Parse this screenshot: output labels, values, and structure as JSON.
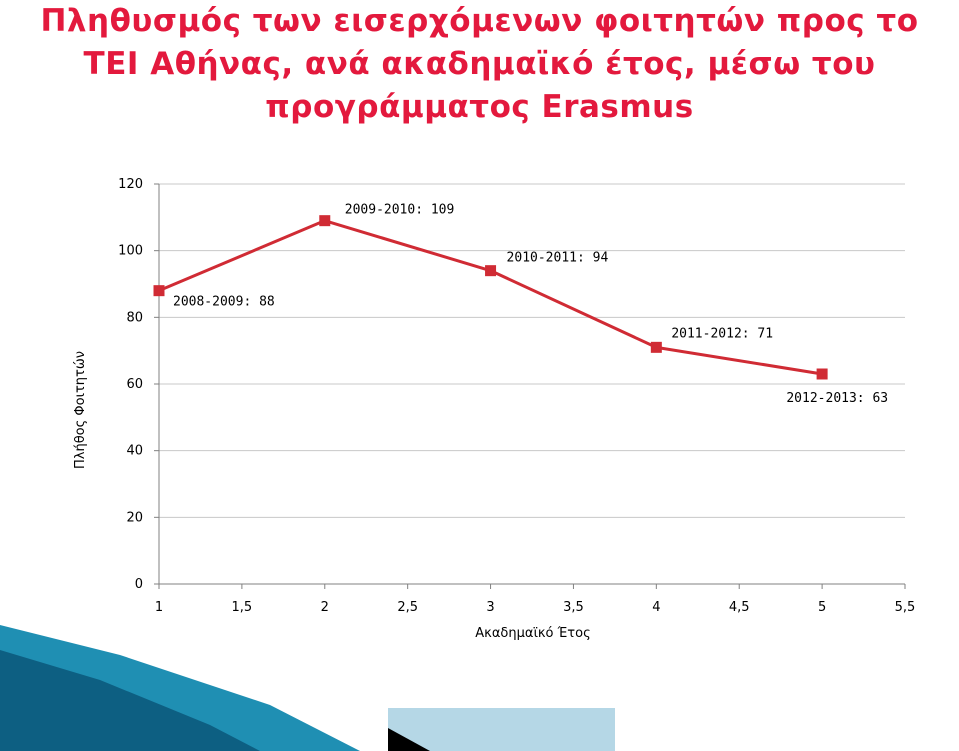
{
  "chart_data": {
    "type": "line",
    "title_lines": [
      "Πληθυσμός των εισερχόμενων φοιτητών προς το",
      "ΤΕΙ Αθήνας, ανά ακαδημαϊκό έτος, μέσω του",
      "προγράμματος Erasmus"
    ],
    "xlabel": "Ακαδημαϊκό Έτος",
    "ylabel": "Πλήθος Φοιτητών",
    "xlim": [
      1,
      5.5
    ],
    "ylim": [
      0,
      120
    ],
    "x_ticks": [
      "1",
      "1,5",
      "2",
      "2,5",
      "3",
      "3,5",
      "4",
      "4,5",
      "5",
      "5,5"
    ],
    "y_ticks": [
      "0",
      "20",
      "40",
      "60",
      "80",
      "100",
      "120"
    ],
    "grid": "horizontal",
    "series": [
      {
        "color": "#d02b34",
        "x": [
          1,
          2,
          3,
          4,
          5
        ],
        "y": [
          88,
          109,
          94,
          71,
          63
        ],
        "labels": [
          "2008-2009: 88",
          "2009-2010: 109",
          "2010-2011: 94",
          "2011-2012: 71",
          "2012-2013: 63"
        ]
      }
    ]
  }
}
